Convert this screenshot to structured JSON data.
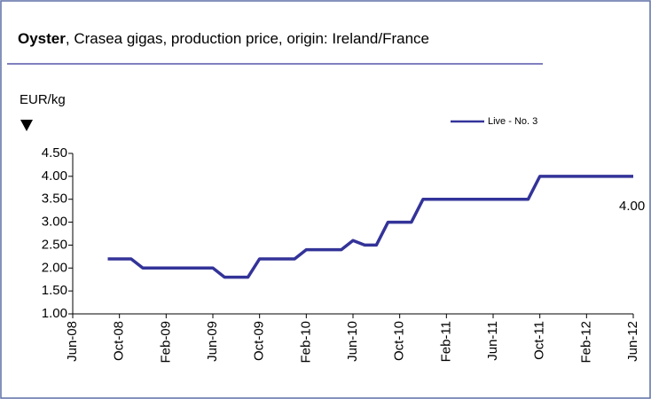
{
  "chart_data": {
    "type": "line",
    "title": [
      "Oyster",
      ", Crasea gigas, production price, origin: Ireland/France"
    ],
    "y_label": "EUR/kg",
    "categories": [
      "Jun-08",
      null,
      null,
      null,
      "Oct-08",
      null,
      null,
      null,
      "Feb-09",
      null,
      null,
      null,
      "Jun-09",
      null,
      null,
      null,
      "Oct-09",
      null,
      null,
      null,
      "Feb-10",
      null,
      null,
      null,
      "Jun-10",
      null,
      null,
      null,
      "Oct-10",
      null,
      null,
      null,
      "Feb-11",
      null,
      null,
      null,
      "Jun-11",
      null,
      null,
      null,
      "Oct-11",
      null,
      null,
      null,
      "Feb-12",
      null,
      null,
      null,
      "Jun-12"
    ],
    "series": [
      {
        "name": "Live - No. 3",
        "color": "#333399",
        "values": [
          null,
          null,
          null,
          2.2,
          2.2,
          2.2,
          2.0,
          2.0,
          2.0,
          2.0,
          2.0,
          2.0,
          2.0,
          1.8,
          1.8,
          1.8,
          2.2,
          2.2,
          2.2,
          2.2,
          2.4,
          2.4,
          2.4,
          2.4,
          2.6,
          2.5,
          2.5,
          3.0,
          3.0,
          3.0,
          3.5,
          3.5,
          3.5,
          3.5,
          3.5,
          3.5,
          3.5,
          3.5,
          3.5,
          3.5,
          4.0,
          4.0,
          4.0,
          4.0,
          4.0,
          4.0,
          4.0,
          4.0,
          4.0
        ],
        "value_labels": [
          null,
          null,
          null,
          null,
          null,
          null,
          null,
          null,
          null,
          null,
          null,
          null,
          null,
          null,
          null,
          null,
          null,
          null,
          null,
          null,
          null,
          null,
          null,
          null,
          null,
          null,
          null,
          null,
          null,
          null,
          null,
          null,
          null,
          null,
          null,
          null,
          null,
          null,
          null,
          null,
          null,
          null,
          null,
          null,
          null,
          null,
          null,
          null,
          "4.00"
        ]
      }
    ],
    "ylim": [
      1,
      4.5
    ],
    "yticks": [
      {
        "value": 1,
        "label": "1.00"
      },
      {
        "value": 1.5,
        "label": "1.50"
      },
      {
        "value": 2,
        "label": "2.00"
      },
      {
        "value": 2.5,
        "label": "2.50"
      },
      {
        "value": 3,
        "label": "3.00"
      },
      {
        "value": 3.5,
        "label": "3.50"
      },
      {
        "value": 4,
        "label": "4.00"
      },
      {
        "value": 4.5,
        "label": "4.50"
      }
    ],
    "legend": "top-right",
    "grid": false
  }
}
